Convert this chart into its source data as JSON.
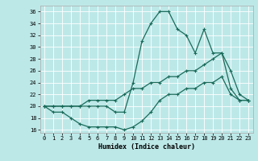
{
  "xlabel": "Humidex (Indice chaleur)",
  "xlim": [
    -0.5,
    23.5
  ],
  "ylim": [
    15.5,
    37
  ],
  "yticks": [
    16,
    18,
    20,
    22,
    24,
    26,
    28,
    30,
    32,
    34,
    36
  ],
  "xticks": [
    0,
    1,
    2,
    3,
    4,
    5,
    6,
    7,
    8,
    9,
    10,
    11,
    12,
    13,
    14,
    15,
    16,
    17,
    18,
    19,
    20,
    21,
    22,
    23
  ],
  "bg_color": "#bde8e8",
  "grid_color": "#d8f0f0",
  "line_color": "#1a6b5a",
  "line1_x": [
    0,
    1,
    2,
    3,
    4,
    5,
    6,
    7,
    8,
    9,
    10,
    11,
    12,
    13,
    14,
    15,
    16,
    17,
    18,
    19,
    20,
    21,
    22,
    23
  ],
  "line1_y": [
    20,
    20,
    20,
    20,
    20,
    20,
    20,
    20,
    19,
    19,
    24,
    31,
    34,
    36,
    36,
    33,
    32,
    29,
    33,
    29,
    29,
    23,
    21,
    21
  ],
  "line2_x": [
    0,
    1,
    2,
    3,
    4,
    5,
    6,
    7,
    8,
    9,
    10,
    11,
    12,
    13,
    14,
    15,
    16,
    17,
    18,
    19,
    20,
    21,
    22,
    23
  ],
  "line2_y": [
    20,
    20,
    20,
    20,
    20,
    21,
    21,
    21,
    21,
    22,
    23,
    23,
    24,
    24,
    25,
    25,
    26,
    26,
    27,
    28,
    29,
    26,
    22,
    21
  ],
  "line3_x": [
    0,
    1,
    2,
    3,
    4,
    5,
    6,
    7,
    8,
    9,
    10,
    11,
    12,
    13,
    14,
    15,
    16,
    17,
    18,
    19,
    20,
    21,
    22,
    23
  ],
  "line3_y": [
    20,
    19,
    19,
    18,
    17,
    16.5,
    16.5,
    16.5,
    16.5,
    16,
    16.5,
    17.5,
    19,
    21,
    22,
    22,
    23,
    23,
    24,
    24,
    25,
    22,
    21,
    21
  ]
}
